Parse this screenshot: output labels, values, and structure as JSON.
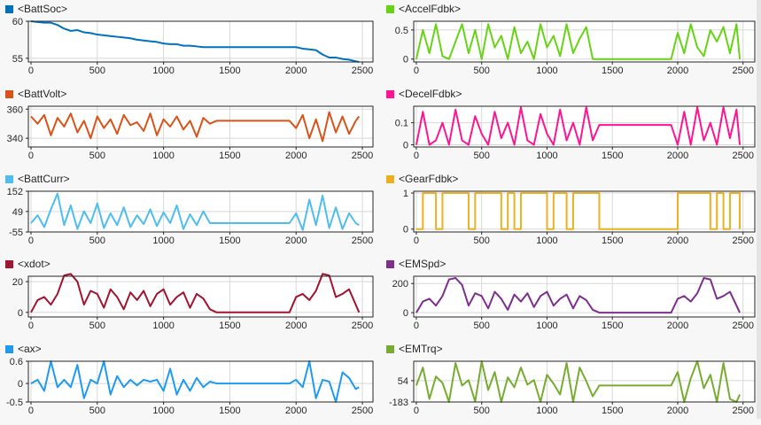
{
  "chart_data": [
    {
      "type": "line",
      "legend": "<BattSoc>",
      "color": "#0072bd",
      "xlim": [
        -20,
        2580
      ],
      "ylim": [
        54.5,
        60
      ],
      "xticks": [
        0,
        500,
        1000,
        1500,
        2000,
        2500
      ],
      "yticks": [
        55,
        60
      ],
      "grid": true,
      "x": [
        0,
        50,
        100,
        150,
        200,
        250,
        300,
        350,
        400,
        450,
        500,
        550,
        600,
        650,
        700,
        750,
        800,
        850,
        900,
        950,
        1000,
        1050,
        1100,
        1150,
        1200,
        1250,
        1300,
        1350,
        1400,
        1450,
        1500,
        1550,
        1600,
        1650,
        1700,
        1750,
        1800,
        1850,
        1900,
        1950,
        2000,
        2050,
        2100,
        2150,
        2200,
        2250,
        2300,
        2350,
        2400,
        2450,
        2475
      ],
      "y": [
        60,
        59.9,
        59.8,
        59.8,
        59.5,
        59.0,
        58.7,
        58.8,
        58.5,
        58.4,
        58.2,
        58.1,
        58.0,
        57.9,
        57.8,
        57.7,
        57.5,
        57.4,
        57.3,
        57.2,
        57.0,
        56.9,
        56.9,
        56.7,
        56.7,
        56.6,
        56.5,
        56.5,
        56.5,
        56.5,
        56.5,
        56.5,
        56.5,
        56.5,
        56.5,
        56.5,
        56.5,
        56.5,
        56.5,
        56.5,
        56.5,
        56.3,
        56.2,
        56.1,
        55.5,
        55.1,
        55.1,
        54.9,
        54.8,
        54.6,
        54.5
      ]
    },
    {
      "type": "line",
      "legend": "<AccelFdbk>",
      "color": "#66d414",
      "xlim": [
        -20,
        2590
      ],
      "ylim": [
        -0.05,
        0.65
      ],
      "xticks": [
        0,
        500,
        1000,
        1500,
        2000,
        2500
      ],
      "yticks": [
        0,
        0.5
      ],
      "grid": true,
      "x": [
        0,
        50,
        100,
        150,
        200,
        250,
        300,
        350,
        400,
        450,
        500,
        550,
        600,
        650,
        700,
        750,
        800,
        850,
        900,
        950,
        1000,
        1050,
        1100,
        1150,
        1200,
        1250,
        1300,
        1350,
        1400,
        1450,
        1500,
        1550,
        1600,
        1650,
        1700,
        1750,
        1800,
        1850,
        1900,
        1950,
        2000,
        2050,
        2100,
        2150,
        2200,
        2250,
        2300,
        2350,
        2400,
        2450,
        2475
      ],
      "y": [
        0,
        0.5,
        0.1,
        0.6,
        0.05,
        0,
        0.3,
        0.6,
        0.1,
        0.5,
        0,
        0.6,
        0.2,
        0.4,
        0,
        0.55,
        0.1,
        0.3,
        0,
        0.6,
        0.2,
        0.4,
        0.05,
        0.6,
        0.1,
        0.35,
        0.55,
        0,
        0,
        0,
        0,
        0,
        0,
        0,
        0,
        0,
        0,
        0,
        0,
        0,
        0.45,
        0.1,
        0.6,
        0.2,
        0.05,
        0.5,
        0.3,
        0.55,
        0.1,
        0.6,
        0
      ]
    },
    {
      "type": "line",
      "legend": "<BattVolt>",
      "color": "#d95319",
      "xlim": [
        -20,
        2580
      ],
      "ylim": [
        334,
        362
      ],
      "xticks": [
        0,
        500,
        1000,
        1500,
        2000,
        2500
      ],
      "yticks": [
        340,
        360
      ],
      "grid": true,
      "x": [
        0,
        50,
        100,
        150,
        200,
        250,
        300,
        350,
        400,
        450,
        500,
        550,
        600,
        650,
        700,
        750,
        800,
        850,
        900,
        950,
        1000,
        1050,
        1100,
        1150,
        1200,
        1250,
        1300,
        1350,
        1400,
        1450,
        1500,
        1550,
        1600,
        1650,
        1700,
        1750,
        1800,
        1850,
        1900,
        1950,
        2000,
        2050,
        2100,
        2150,
        2200,
        2250,
        2300,
        2350,
        2400,
        2450,
        2475
      ],
      "y": [
        355,
        350,
        356,
        342,
        354,
        348,
        357,
        344,
        352,
        340,
        355,
        347,
        353,
        343,
        356,
        349,
        351,
        345,
        357,
        342,
        353,
        348,
        355,
        346,
        352,
        341,
        354,
        350,
        352,
        352,
        352,
        352,
        352,
        352,
        352,
        352,
        352,
        352,
        352,
        352,
        347,
        356,
        340,
        353,
        338,
        358,
        344,
        355,
        343,
        352,
        355
      ]
    },
    {
      "type": "line",
      "legend": "<DecelFdbk>",
      "color": "#ff1493",
      "xlim": [
        -20,
        2590
      ],
      "ylim": [
        -0.01,
        0.175
      ],
      "xticks": [
        0,
        500,
        1000,
        1500,
        2000,
        2500
      ],
      "yticks": [
        0,
        0.1
      ],
      "grid": true,
      "x": [
        0,
        50,
        100,
        150,
        200,
        250,
        300,
        350,
        400,
        450,
        500,
        550,
        600,
        650,
        700,
        750,
        800,
        850,
        900,
        950,
        1000,
        1050,
        1100,
        1150,
        1200,
        1250,
        1300,
        1350,
        1400,
        1450,
        1500,
        1550,
        1600,
        1650,
        1700,
        1750,
        1800,
        1850,
        1900,
        1950,
        2000,
        2050,
        2100,
        2150,
        2200,
        2250,
        2300,
        2350,
        2400,
        2450,
        2475
      ],
      "y": [
        0,
        0.15,
        0,
        0.02,
        0.1,
        0,
        0.16,
        0.02,
        0,
        0.13,
        0.05,
        0,
        0.15,
        0.03,
        0.1,
        0,
        0.17,
        0.02,
        0,
        0.14,
        0.05,
        0,
        0.16,
        0.02,
        0.1,
        0,
        0.17,
        0.02,
        0.09,
        0.09,
        0.09,
        0.09,
        0.09,
        0.09,
        0.09,
        0.09,
        0.09,
        0.09,
        0.09,
        0.09,
        0,
        0.15,
        0,
        0.17,
        0.02,
        0.1,
        0,
        0.17,
        0.03,
        0.16,
        0
      ]
    },
    {
      "type": "line",
      "legend": "<BattCurr>",
      "color": "#4dbeee",
      "xlim": [
        -20,
        2580
      ],
      "ylim": [
        -55,
        152
      ],
      "xticks": [
        0,
        500,
        1000,
        1500,
        2000,
        2500
      ],
      "yticks": [
        -55,
        49,
        152
      ],
      "grid": true,
      "x": [
        0,
        50,
        100,
        150,
        200,
        250,
        300,
        350,
        400,
        450,
        500,
        550,
        600,
        650,
        700,
        750,
        800,
        850,
        900,
        950,
        1000,
        1050,
        1100,
        1150,
        1200,
        1250,
        1300,
        1350,
        1400,
        1450,
        1500,
        1550,
        1600,
        1650,
        1700,
        1750,
        1800,
        1850,
        1900,
        1950,
        2000,
        2050,
        2100,
        2150,
        2200,
        2250,
        2300,
        2350,
        2400,
        2450,
        2475
      ],
      "y": [
        -10,
        30,
        -30,
        60,
        140,
        -20,
        80,
        -40,
        50,
        -10,
        90,
        -35,
        40,
        -20,
        70,
        -30,
        30,
        -15,
        60,
        -25,
        45,
        -10,
        80,
        -40,
        35,
        -20,
        50,
        -10,
        -10,
        -10,
        -10,
        -10,
        -10,
        -10,
        -10,
        -10,
        -10,
        -10,
        -10,
        -10,
        40,
        -45,
        110,
        -20,
        130,
        -35,
        70,
        -40,
        40,
        -10,
        -20
      ]
    },
    {
      "type": "line",
      "legend": "<GearFdbk>",
      "color": "#edb120",
      "xlim": [
        -20,
        2590
      ],
      "ylim": [
        -0.08,
        1.05
      ],
      "xticks": [
        0,
        500,
        1000,
        1500,
        2000,
        2500
      ],
      "yticks": [
        0,
        1
      ],
      "grid": true,
      "step": true,
      "x": [
        0,
        50,
        100,
        150,
        200,
        250,
        300,
        350,
        400,
        450,
        500,
        550,
        600,
        650,
        700,
        750,
        800,
        850,
        900,
        950,
        1000,
        1050,
        1100,
        1150,
        1200,
        1250,
        1300,
        1350,
        1400,
        1450,
        1500,
        1550,
        1600,
        1650,
        1700,
        1750,
        1800,
        1850,
        1900,
        1950,
        2000,
        2050,
        2100,
        2150,
        2200,
        2250,
        2300,
        2350,
        2400,
        2450,
        2475
      ],
      "y": [
        0,
        1,
        1,
        0,
        1,
        1,
        1,
        1,
        0,
        1,
        1,
        1,
        1,
        0,
        1,
        0,
        1,
        1,
        1,
        1,
        0,
        1,
        1,
        0,
        1,
        1,
        1,
        1,
        0,
        0,
        0,
        0,
        0,
        0,
        0,
        0,
        0,
        0,
        0,
        0,
        1,
        1,
        1,
        1,
        1,
        0,
        1,
        0,
        1,
        1,
        0
      ]
    },
    {
      "type": "line",
      "legend": "<xdot>",
      "color": "#a2142f",
      "xlim": [
        -20,
        2580
      ],
      "ylim": [
        -3,
        23.5
      ],
      "xticks": [
        0,
        500,
        1000,
        1500,
        2000,
        2500
      ],
      "yticks": [
        0,
        20
      ],
      "grid": true,
      "x": [
        0,
        50,
        100,
        150,
        200,
        250,
        300,
        350,
        400,
        450,
        500,
        550,
        600,
        650,
        700,
        750,
        800,
        850,
        900,
        950,
        1000,
        1050,
        1100,
        1150,
        1200,
        1250,
        1300,
        1350,
        1400,
        1450,
        1500,
        1550,
        1600,
        1650,
        1700,
        1750,
        1800,
        1850,
        1900,
        1950,
        2000,
        2050,
        2100,
        2150,
        2200,
        2250,
        2300,
        2350,
        2400,
        2450,
        2475
      ],
      "y": [
        0,
        8,
        10,
        5,
        12,
        24,
        25,
        20,
        5,
        14,
        12,
        3,
        15,
        10,
        2,
        13,
        8,
        14,
        4,
        12,
        15,
        5,
        10,
        13,
        3,
        12,
        9,
        2,
        0,
        0,
        0,
        0,
        0,
        0,
        0,
        0,
        0,
        0,
        0,
        0,
        10,
        12,
        8,
        14,
        25,
        24,
        10,
        12,
        15,
        5,
        0
      ]
    },
    {
      "type": "line",
      "legend": "<EMSpd>",
      "color": "#7e2f8e",
      "xlim": [
        -20,
        2590
      ],
      "ylim": [
        -30,
        250
      ],
      "xticks": [
        0,
        500,
        1000,
        1500,
        2000,
        2500
      ],
      "yticks": [
        0,
        200
      ],
      "grid": true,
      "x": [
        0,
        50,
        100,
        150,
        200,
        250,
        300,
        350,
        400,
        450,
        500,
        550,
        600,
        650,
        700,
        750,
        800,
        850,
        900,
        950,
        1000,
        1050,
        1100,
        1150,
        1200,
        1250,
        1300,
        1350,
        1400,
        1450,
        1500,
        1550,
        1600,
        1650,
        1700,
        1750,
        1800,
        1850,
        1900,
        1950,
        2000,
        2050,
        2100,
        2150,
        2200,
        2250,
        2300,
        2350,
        2400,
        2450,
        2475
      ],
      "y": [
        0,
        76,
        95,
        48,
        114,
        228,
        238,
        190,
        48,
        133,
        114,
        29,
        143,
        95,
        19,
        124,
        76,
        133,
        38,
        114,
        143,
        48,
        95,
        124,
        29,
        114,
        86,
        19,
        0,
        0,
        0,
        0,
        0,
        0,
        0,
        0,
        0,
        0,
        0,
        0,
        95,
        114,
        76,
        133,
        238,
        228,
        95,
        114,
        143,
        48,
        0
      ]
    },
    {
      "type": "line",
      "legend": "<ax>",
      "color": "#1e9bf0",
      "xlim": [
        -20,
        2580
      ],
      "ylim": [
        -0.5,
        0.6
      ],
      "xticks": [
        0,
        500,
        1000,
        1500,
        2000,
        2500
      ],
      "yticks": [
        -0.5,
        0,
        0.6
      ],
      "grid": true,
      "x": [
        0,
        50,
        100,
        150,
        200,
        250,
        300,
        350,
        400,
        450,
        500,
        550,
        600,
        650,
        700,
        750,
        800,
        850,
        900,
        950,
        1000,
        1050,
        1100,
        1150,
        1200,
        1250,
        1300,
        1350,
        1400,
        1450,
        1500,
        1550,
        1600,
        1650,
        1700,
        1750,
        1800,
        1850,
        1900,
        1950,
        2000,
        2050,
        2100,
        2150,
        2200,
        2250,
        2300,
        2350,
        2400,
        2450,
        2475
      ],
      "y": [
        0,
        0.1,
        -0.2,
        0.6,
        -0.1,
        0.1,
        -0.1,
        0.5,
        -0.4,
        0.1,
        0,
        0.6,
        -0.3,
        0.2,
        -0.1,
        0.1,
        -0.05,
        0.1,
        0.05,
        0.1,
        -0.2,
        0.4,
        -0.3,
        0.1,
        -0.2,
        0.15,
        -0.1,
        0.05,
        0,
        0,
        0,
        0,
        0,
        0,
        0,
        0,
        0,
        0,
        0,
        0,
        0.1,
        -0.1,
        0.6,
        -0.4,
        0.1,
        0.05,
        -0.5,
        0.3,
        0.15,
        -0.15,
        -0.1
      ]
    },
    {
      "type": "line",
      "legend": "<EMTrq>",
      "color": "#77ac30",
      "xlim": [
        -20,
        2590
      ],
      "ylim": [
        -183,
        270
      ],
      "xticks": [
        0,
        500,
        1000,
        1500,
        2000,
        2500
      ],
      "yticks": [
        -183,
        54
      ],
      "grid": true,
      "x": [
        0,
        50,
        100,
        150,
        200,
        250,
        300,
        350,
        400,
        450,
        500,
        550,
        600,
        650,
        700,
        750,
        800,
        850,
        900,
        950,
        1000,
        1050,
        1100,
        1150,
        1200,
        1250,
        1300,
        1350,
        1400,
        1450,
        1500,
        1550,
        1600,
        1650,
        1700,
        1750,
        1800,
        1850,
        1900,
        1950,
        2000,
        2050,
        2100,
        2150,
        2200,
        2250,
        2300,
        2350,
        2400,
        2450,
        2475
      ],
      "y": [
        0,
        200,
        -150,
        100,
        30,
        -183,
        250,
        0,
        60,
        -180,
        270,
        -50,
        150,
        -183,
        90,
        -20,
        200,
        10,
        60,
        -183,
        120,
        20,
        -100,
        250,
        -183,
        200,
        50,
        -120,
        0,
        0,
        0,
        0,
        0,
        0,
        0,
        0,
        0,
        0,
        0,
        0,
        150,
        -183,
        80,
        270,
        -30,
        120,
        -183,
        250,
        -150,
        -183,
        -100
      ]
    }
  ]
}
